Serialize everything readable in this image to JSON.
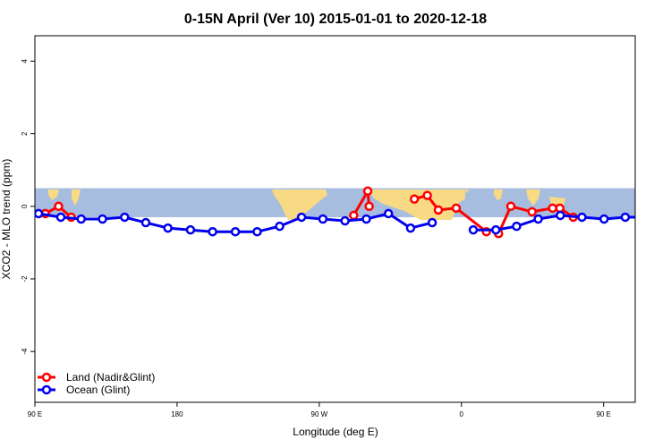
{
  "chart_data": {
    "type": "line",
    "title": "0-15N April (Ver 10)   2015-01-01 to 2020-12-18",
    "xlabel": "Longitude (deg E)",
    "ylabel": "XCO2 - MLO trend (ppm)",
    "xlim": [
      90,
      470
    ],
    "ylim": [
      -5.4,
      4.7
    ],
    "x_ticks": [
      {
        "value": 90,
        "label": "90 E"
      },
      {
        "value": 180,
        "label": "180"
      },
      {
        "value": 270,
        "label": "90 W"
      },
      {
        "value": 360,
        "label": "0"
      },
      {
        "value": 450,
        "label": "90 E"
      },
      {
        "value": 540,
        "label": "180"
      }
    ],
    "y_ticks": [
      {
        "value": 4,
        "label": "4"
      },
      {
        "value": 2,
        "label": "2"
      },
      {
        "value": 0,
        "label": "0"
      },
      {
        "value": -2,
        "label": "-2"
      },
      {
        "value": -4,
        "label": "-4"
      }
    ],
    "map_band": {
      "ymin": -0.3,
      "ymax": 0.5,
      "ocean_color": "#a7bddf",
      "land_color": "#f9da84"
    },
    "series": [
      {
        "name": "Land (Nadir&Glint)",
        "color": "#ff0000",
        "segments": [
          {
            "x": [
              96.6,
              105,
              113
            ],
            "y": [
              -0.2,
              0.0,
              -0.3
            ]
          },
          {
            "x": [
              291.8,
              300.7,
              301.6
            ],
            "y": [
              -0.25,
              0.42,
              0.0
            ]
          },
          {
            "x": [
              330.2,
              338.4,
              345.4,
              356.7,
              375.8
            ],
            "y": [
              0.2,
              0.3,
              -0.1,
              -0.05,
              -0.7
            ]
          },
          {
            "x": [
              383.5,
              391.3,
              404.7,
              417.7
            ],
            "y": [
              -0.75,
              0.0,
              -0.15,
              -0.05
            ]
          },
          {
            "x": [
              422.3,
              430.8
            ],
            "y": [
              -0.05,
              -0.3
            ]
          }
        ]
      },
      {
        "name": "Ocean (Glint)",
        "color": "#0000ee",
        "segments": [
          {
            "x": [
              92.3,
              106.4,
              119.3,
              132.8,
              146.8,
              160.2,
              174.2,
              188.5,
              202.5,
              216.9,
              230.7,
              244.9,
              258.8,
              272.3,
              286.3,
              299.8,
              313.8,
              327.8,
              341.5
            ],
            "y": [
              -0.2,
              -0.3,
              -0.35,
              -0.35,
              -0.3,
              -0.45,
              -0.6,
              -0.65,
              -0.7,
              -0.7,
              -0.7,
              -0.55,
              -0.3,
              -0.35,
              -0.4,
              -0.35,
              -0.2,
              -0.6,
              -0.45
            ]
          },
          {
            "x": [
              367.5,
              381.8,
              394.9,
              408.6,
              422.6,
              436.3,
              450.3,
              463.7,
              478,
              491.8,
              505.6
            ],
            "y": [
              -0.65,
              -0.65,
              -0.55,
              -0.35,
              -0.25,
              -0.3,
              -0.35,
              -0.3,
              -0.3,
              -0.3,
              -0.45
            ]
          }
        ]
      }
    ],
    "legend": {
      "position": "bottom-left"
    }
  }
}
